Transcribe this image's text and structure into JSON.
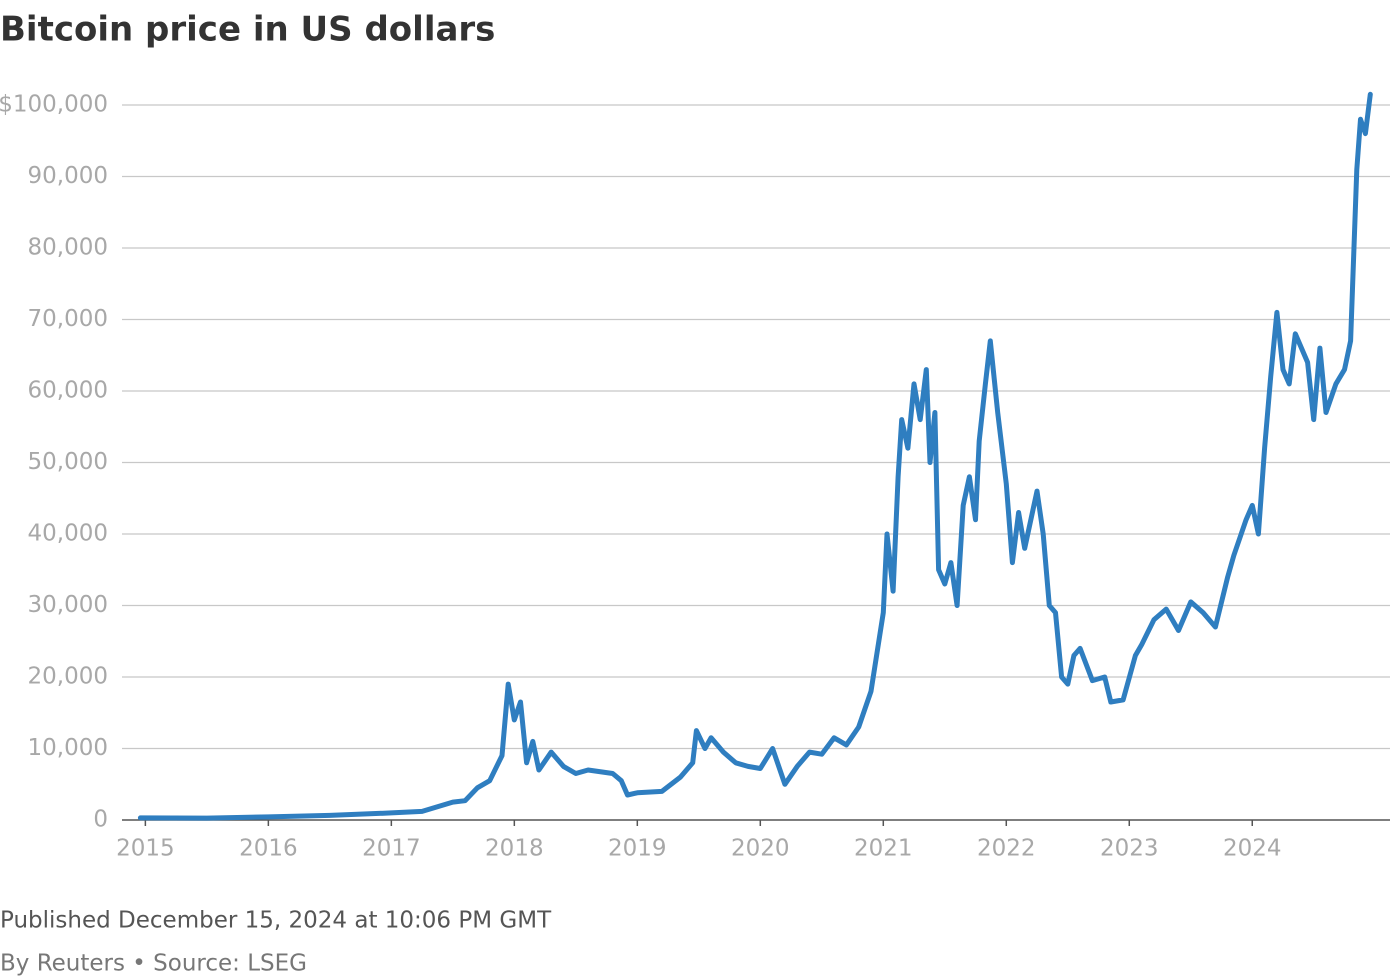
{
  "chart_data": {
    "type": "line",
    "title": "Bitcoin price in US dollars",
    "annotations": [
      "Published December 15, 2024 at 10:06 PM GMT",
      "By Reuters • Source: LSEG"
    ],
    "color": "#2f7ec0",
    "grid": true,
    "xlim": [
      2014.81,
      2025.12
    ],
    "xticks": [
      2015,
      2016,
      2017,
      2018,
      2019,
      2020,
      2021,
      2022,
      2023,
      2024
    ],
    "ylim": [
      0,
      100000
    ],
    "yticks": [
      0,
      {
        "value": 10000,
        "label": "10,000"
      },
      {
        "value": 20000,
        "label": "20,000"
      },
      {
        "value": 30000,
        "label": "30,000"
      },
      {
        "value": 40000,
        "label": "40,000"
      },
      {
        "value": 50000,
        "label": "50,000"
      },
      {
        "value": 60000,
        "label": "60,000"
      },
      {
        "value": 70000,
        "label": "70,000"
      },
      {
        "value": 80000,
        "label": "80,000"
      },
      {
        "value": 90000,
        "label": "90,000"
      },
      {
        "value": 100000,
        "label": "$100,000"
      }
    ],
    "x": [
      2014.96,
      2015.5,
      2016.0,
      2016.5,
      2017.0,
      2017.25,
      2017.5,
      2017.6,
      2017.7,
      2017.8,
      2017.9,
      2017.95,
      2018.0,
      2018.05,
      2018.1,
      2018.15,
      2018.2,
      2018.3,
      2018.4,
      2018.5,
      2018.6,
      2018.8,
      2018.87,
      2018.92,
      2019.0,
      2019.2,
      2019.35,
      2019.45,
      2019.48,
      2019.55,
      2019.6,
      2019.7,
      2019.8,
      2019.9,
      2020.0,
      2020.1,
      2020.2,
      2020.3,
      2020.4,
      2020.5,
      2020.6,
      2020.7,
      2020.8,
      2020.9,
      2021.0,
      2021.03,
      2021.08,
      2021.12,
      2021.15,
      2021.2,
      2021.25,
      2021.3,
      2021.35,
      2021.38,
      2021.42,
      2021.45,
      2021.5,
      2021.55,
      2021.6,
      2021.65,
      2021.7,
      2021.75,
      2021.78,
      2021.83,
      2021.87,
      2021.93,
      2022.0,
      2022.05,
      2022.1,
      2022.15,
      2022.25,
      2022.3,
      2022.35,
      2022.4,
      2022.45,
      2022.5,
      2022.55,
      2022.6,
      2022.7,
      2022.8,
      2022.85,
      2022.95,
      2023.05,
      2023.1,
      2023.2,
      2023.3,
      2023.4,
      2023.5,
      2023.6,
      2023.7,
      2023.8,
      2023.85,
      2023.95,
      2024.0,
      2024.05,
      2024.1,
      2024.15,
      2024.2,
      2024.25,
      2024.3,
      2024.35,
      2024.45,
      2024.5,
      2024.55,
      2024.6,
      2024.68,
      2024.75,
      2024.8,
      2024.85,
      2024.88,
      2024.92,
      2024.96
    ],
    "values": [
      300,
      270,
      430,
      650,
      1000,
      1200,
      2500,
      2700,
      4500,
      5500,
      9000,
      19000,
      14000,
      16500,
      8000,
      11000,
      7000,
      9500,
      7500,
      6500,
      7000,
      6500,
      5500,
      3500,
      3800,
      4000,
      6000,
      8000,
      12500,
      10000,
      11500,
      9500,
      8000,
      7500,
      7200,
      10000,
      5000,
      7500,
      9500,
      9200,
      11500,
      10500,
      13000,
      18000,
      29000,
      40000,
      32000,
      48000,
      56000,
      52000,
      61000,
      56000,
      63000,
      50000,
      57000,
      35000,
      33000,
      36000,
      30000,
      44000,
      48000,
      42000,
      53000,
      61000,
      67000,
      57000,
      47000,
      36000,
      43000,
      38000,
      46000,
      40000,
      30000,
      29000,
      20000,
      19000,
      23000,
      24000,
      19500,
      20000,
      16500,
      16800,
      23000,
      24500,
      28000,
      29500,
      26500,
      30500,
      29000,
      27000,
      34000,
      37000,
      42000,
      44000,
      40000,
      52000,
      62000,
      71000,
      63000,
      61000,
      68000,
      64000,
      56000,
      66000,
      57000,
      61000,
      63000,
      67000,
      91000,
      98000,
      96000,
      101500
    ]
  }
}
